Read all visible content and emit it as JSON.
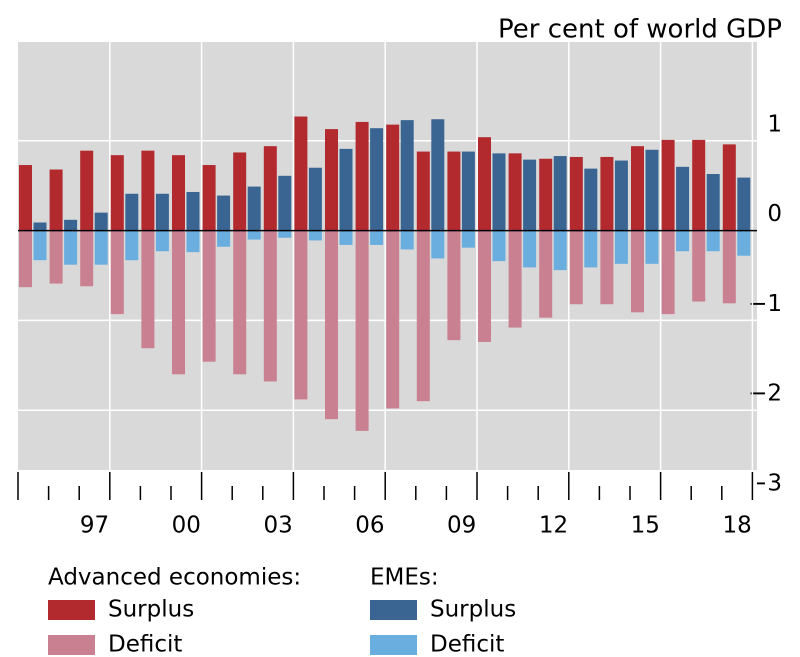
{
  "chart_data": {
    "type": "bar",
    "y_label": "Per cent of world GDP",
    "categories": [
      null,
      null,
      "97",
      null,
      null,
      "00",
      null,
      null,
      "03",
      null,
      null,
      "06",
      null,
      null,
      "09",
      null,
      null,
      "12",
      null,
      null,
      "15",
      null,
      null,
      "18"
    ],
    "legend_groups": [
      "Advanced economies:",
      "EMEs:"
    ],
    "series": [
      {
        "name": "Surplus",
        "color": "#b22a2e",
        "values": [
          0.73,
          0.68,
          0.89,
          0.84,
          0.89,
          0.84,
          0.73,
          0.87,
          0.94,
          1.27,
          1.13,
          1.21,
          1.18,
          0.88,
          0.88,
          1.04,
          0.86,
          0.8,
          0.82,
          0.82,
          0.94,
          1.01,
          1.01,
          0.96
        ]
      },
      {
        "name": "Deficit",
        "color": "#c98090",
        "values": [
          -0.63,
          -0.59,
          -0.62,
          -0.93,
          -1.31,
          -1.6,
          -1.46,
          -1.6,
          -1.68,
          -1.88,
          -2.1,
          -2.23,
          -1.98,
          -1.9,
          -1.22,
          -1.24,
          -1.08,
          -0.97,
          -0.82,
          -0.82,
          -0.91,
          -0.93,
          -0.79,
          -0.81
        ]
      },
      {
        "name": "Surplus",
        "color": "#3a6593",
        "values": [
          0.09,
          0.12,
          0.2,
          0.41,
          0.41,
          0.43,
          0.39,
          0.49,
          0.61,
          0.7,
          0.91,
          1.14,
          1.23,
          1.24,
          0.88,
          0.86,
          0.79,
          0.83,
          0.69,
          0.78,
          0.9,
          0.71,
          0.63,
          0.59
        ]
      },
      {
        "name": "Deficit",
        "color": "#6aaee0",
        "values": [
          -0.33,
          -0.38,
          -0.38,
          -0.33,
          -0.23,
          -0.24,
          -0.18,
          -0.1,
          -0.08,
          -0.11,
          -0.16,
          -0.16,
          -0.21,
          -0.31,
          -0.19,
          -0.34,
          -0.41,
          -0.44,
          -0.41,
          -0.37,
          -0.37,
          -0.23,
          -0.23,
          -0.28
        ]
      }
    ],
    "ylim": [
      -3,
      2.1
    ],
    "yticks": [
      {
        "value": -3,
        "label": "−3"
      },
      {
        "value": -2,
        "label": "−2"
      },
      {
        "value": -1,
        "label": "−1"
      },
      0,
      1
    ],
    "grid": true
  }
}
